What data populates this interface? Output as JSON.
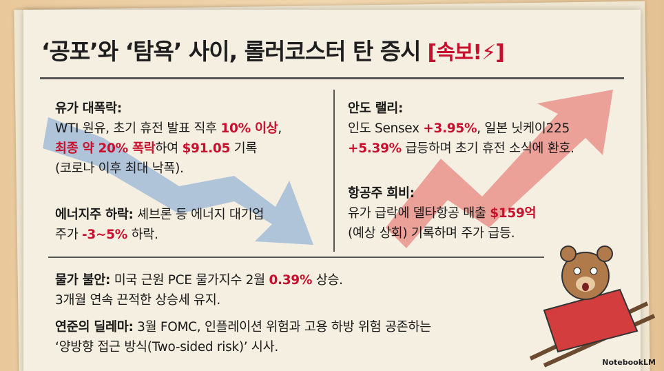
{
  "header": {
    "title": "‘공포’와 ‘탐욕’ 사이, 롤러코스터 탄 증시",
    "badge": "[속보!⚡]",
    "badge_color": "#c8102e"
  },
  "sections": [
    {
      "lines": [
        [
          {
            "text": "유가 대폭락:",
            "bold": true
          }
        ],
        [
          {
            "text": "WTI 원유, 초기 휴전 발표 직후 "
          },
          {
            "text": "10% 이상",
            "color": "#c8102e"
          },
          {
            "text": ","
          }
        ],
        [
          {
            "text": "최종 약 20% 폭락",
            "color": "#c8102e"
          },
          {
            "text": "하여 "
          },
          {
            "text": "$91.05",
            "color": "#c8102e"
          },
          {
            "text": " 기록"
          }
        ],
        [
          {
            "text": "(코로나 이후 최대 낙폭)."
          }
        ]
      ]
    },
    {
      "lines": [
        [
          {
            "text": "에너지주 하락:",
            "bold": true
          },
          {
            "text": " 셰브론 등 에너지 대기업"
          }
        ],
        [
          {
            "text": "주가 "
          },
          {
            "text": "-3~5%",
            "color": "#c8102e"
          },
          {
            "text": " 하락."
          }
        ]
      ]
    },
    {
      "lines": [
        [
          {
            "text": "안도 랠리:",
            "bold": true
          }
        ],
        [
          {
            "text": "인도 Sensex "
          },
          {
            "text": "+3.95%",
            "color": "#c8102e"
          },
          {
            "text": ", 일본 닛케이225"
          }
        ],
        [
          {
            "text": "+5.39%",
            "color": "#c8102e"
          },
          {
            "text": " 급등하며 초기 휴전 소식에 환호."
          }
        ]
      ]
    },
    {
      "lines": [
        [
          {
            "text": "항공주 희비:",
            "bold": true
          }
        ],
        [
          {
            "text": "유가 급락에 델타항공 매출 "
          },
          {
            "text": "$159억",
            "color": "#c8102e"
          }
        ],
        [
          {
            "text": "(예상 상회) 기록하며 주가 급등."
          }
        ]
      ]
    },
    {
      "lines": [
        [
          {
            "text": "물가 불안:",
            "bold": true
          },
          {
            "text": " 미국 근원 PCE 물가지수 2월 "
          },
          {
            "text": "0.39%",
            "color": "#c8102e"
          },
          {
            "text": " 상승."
          }
        ],
        [
          {
            "text": "3개월 연속 끈적한 상승세 유지."
          }
        ]
      ]
    },
    {
      "lines": [
        [
          {
            "text": "연준의 딜레마:",
            "bold": true
          },
          {
            "text": " 3월 FOMC, 인플레이션 위험과 고용 하방 위험 공존하는"
          }
        ],
        [
          {
            "text": "‘양방향 접근 방식(Two-sided risk)’ 시사."
          }
        ]
      ]
    }
  ],
  "footer": {
    "brand": "NotebookLM"
  }
}
